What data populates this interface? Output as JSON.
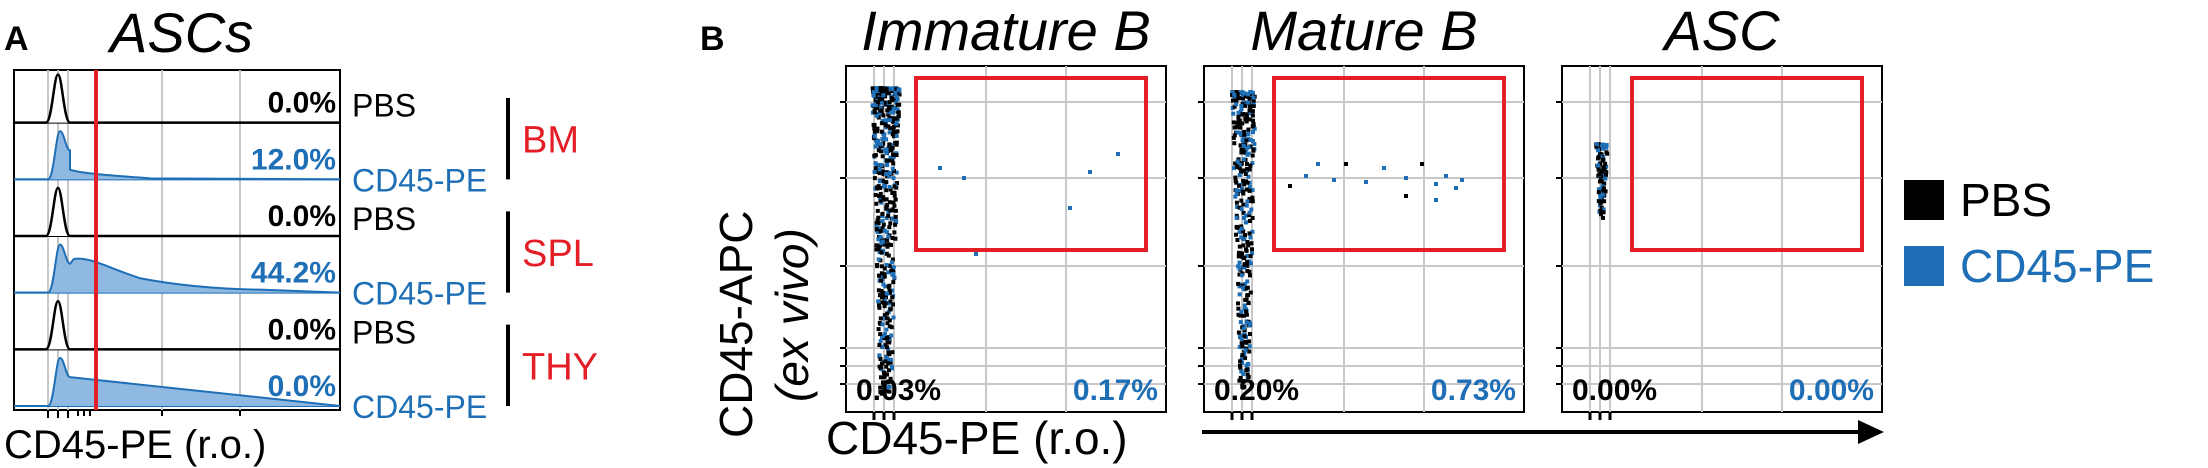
{
  "panel_a": {
    "letter": "A",
    "title": "ASCs",
    "x_axis_label": "CD45-PE (r.o.)",
    "rows": [
      {
        "group": "BM",
        "group_color": "#e41e26",
        "treatment": "PBS",
        "percent": "0.0%",
        "color": "#000000"
      },
      {
        "group": "BM",
        "group_color": "#e41e26",
        "treatment": "CD45-PE",
        "percent": "12.0%",
        "color": "#1f6fb7"
      },
      {
        "group": "SPL",
        "group_color": "#e41e26",
        "treatment": "PBS",
        "percent": "0.0%",
        "color": "#000000"
      },
      {
        "group": "SPL",
        "group_color": "#e41e26",
        "treatment": "CD45-PE",
        "percent": "44.2%",
        "color": "#1f6fb7"
      },
      {
        "group": "THY",
        "group_color": "#e41e26",
        "treatment": "PBS",
        "percent": "0.0%",
        "color": "#000000"
      },
      {
        "group": "THY",
        "group_color": "#e41e26",
        "treatment": "CD45-PE",
        "percent": "0.0%",
        "color": "#1f6fb7"
      }
    ],
    "groups": [
      "BM",
      "SPL",
      "THY"
    ]
  },
  "panel_b": {
    "letter": "B",
    "y_axis_label_line1": "CD45-APC",
    "y_axis_label_line2": "(ex vivo)",
    "x_axis_label": "CD45-PE (r.o.)",
    "plots": [
      {
        "title": "Immature B",
        "pbs_percent": "0.03%",
        "cd45_percent": "0.17%"
      },
      {
        "title": "Mature B",
        "pbs_percent": "0.20%",
        "cd45_percent": "0.73%"
      },
      {
        "title": "ASC",
        "pbs_percent": "0.00%",
        "cd45_percent": "0.00%"
      }
    ]
  },
  "legend": {
    "items": [
      {
        "label": "PBS",
        "color": "#000000"
      },
      {
        "label": "CD45-PE",
        "color": "#1f6fb7"
      }
    ]
  },
  "colors": {
    "gate": "#e41e26",
    "pbs": "#000000",
    "cd45": "#1f6fb7",
    "cd45_fill": "#8fb9e0",
    "grid": "#c8c8c8"
  },
  "chart_data": [
    {
      "type": "area",
      "title": "ASCs",
      "xlabel": "CD45-PE (r.o.)",
      "ylabel": "",
      "series": [
        {
          "name": "BM PBS",
          "positive_percent": 0.0
        },
        {
          "name": "BM CD45-PE",
          "positive_percent": 12.0
        },
        {
          "name": "SPL PBS",
          "positive_percent": 0.0
        },
        {
          "name": "SPL CD45-PE",
          "positive_percent": 44.2
        },
        {
          "name": "THY PBS",
          "positive_percent": 0.0
        },
        {
          "name": "THY CD45-PE",
          "positive_percent": 0.0
        }
      ]
    },
    {
      "type": "scatter",
      "title": "Immature B",
      "xlabel": "CD45-PE (r.o.)",
      "ylabel": "CD45-APC (ex vivo)",
      "series": [
        {
          "name": "PBS",
          "gate_percent": 0.03
        },
        {
          "name": "CD45-PE",
          "gate_percent": 0.17
        }
      ]
    },
    {
      "type": "scatter",
      "title": "Mature B",
      "xlabel": "CD45-PE (r.o.)",
      "ylabel": "CD45-APC (ex vivo)",
      "series": [
        {
          "name": "PBS",
          "gate_percent": 0.2
        },
        {
          "name": "CD45-PE",
          "gate_percent": 0.73
        }
      ]
    },
    {
      "type": "scatter",
      "title": "ASC",
      "xlabel": "CD45-PE (r.o.)",
      "ylabel": "CD45-APC (ex vivo)",
      "series": [
        {
          "name": "PBS",
          "gate_percent": 0.0
        },
        {
          "name": "CD45-PE",
          "gate_percent": 0.0
        }
      ]
    }
  ]
}
